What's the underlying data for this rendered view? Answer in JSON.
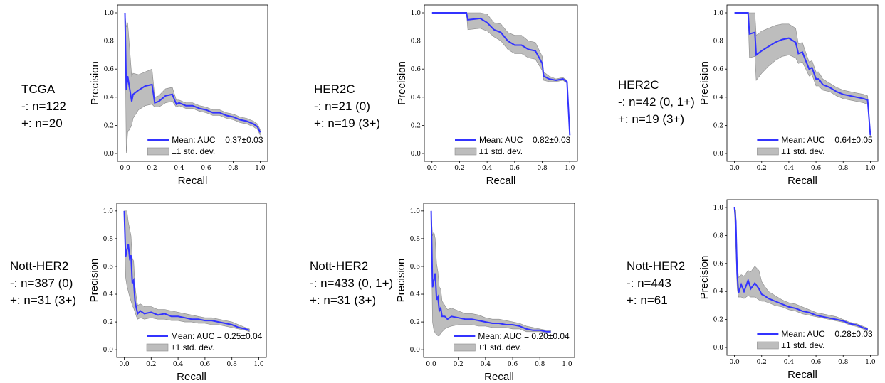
{
  "colors": {
    "mean_line": "#3333ff",
    "band": "#bdbdbd",
    "band_edge": "#8c8c8c"
  },
  "chart_data": [
    {
      "type": "line",
      "group_label": [
        "TCGA",
        "-: n=122",
        "+: n=20"
      ],
      "xlabel": "Recall",
      "ylabel": "Precision",
      "xlim": [
        0,
        1
      ],
      "ylim": [
        0,
        1
      ],
      "xticks": [
        "0.0",
        "0.2",
        "0.4",
        "0.6",
        "0.8",
        "1.0"
      ],
      "yticks": [
        "0.0",
        "0.2",
        "0.4",
        "0.6",
        "0.8",
        "1.0"
      ],
      "legend_position": "lower-right",
      "legend": [
        "Mean: AUC = 0.37±0.03",
        "±1 std. dev."
      ],
      "series": [
        {
          "x": [
            0.0,
            0.01,
            0.02,
            0.05,
            0.06,
            0.1,
            0.15,
            0.2,
            0.22,
            0.25,
            0.3,
            0.35,
            0.38,
            0.4,
            0.45,
            0.5,
            0.55,
            0.6,
            0.65,
            0.7,
            0.75,
            0.8,
            0.85,
            0.9,
            0.95,
            0.98,
            1.0
          ],
          "y": [
            1.0,
            0.45,
            0.55,
            0.37,
            0.42,
            0.45,
            0.48,
            0.49,
            0.36,
            0.37,
            0.41,
            0.42,
            0.35,
            0.36,
            0.34,
            0.34,
            0.32,
            0.31,
            0.29,
            0.29,
            0.27,
            0.26,
            0.24,
            0.23,
            0.21,
            0.19,
            0.15
          ],
          "lower": [
            0.95,
            0.0,
            0.15,
            0.2,
            0.25,
            0.31,
            0.34,
            0.35,
            0.33,
            0.33,
            0.36,
            0.37,
            0.33,
            0.34,
            0.32,
            0.32,
            0.3,
            0.29,
            0.27,
            0.27,
            0.25,
            0.24,
            0.22,
            0.21,
            0.19,
            0.17,
            0.13
          ],
          "upper": [
            1.0,
            0.9,
            0.93,
            0.55,
            0.57,
            0.56,
            0.58,
            0.6,
            0.4,
            0.41,
            0.46,
            0.47,
            0.38,
            0.38,
            0.36,
            0.36,
            0.34,
            0.33,
            0.31,
            0.31,
            0.29,
            0.28,
            0.26,
            0.25,
            0.23,
            0.21,
            0.17
          ]
        }
      ]
    },
    {
      "type": "line",
      "group_label": [
        "HER2C",
        "-: n=21 (0)",
        "+: n=19 (3+)"
      ],
      "xlabel": "Recall",
      "ylabel": "Precision",
      "xlim": [
        0,
        1
      ],
      "ylim": [
        0,
        1
      ],
      "xticks": [
        "0.0",
        "0.2",
        "0.4",
        "0.6",
        "0.8",
        "1.0"
      ],
      "yticks": [
        "0.0",
        "0.2",
        "0.4",
        "0.6",
        "0.8",
        "1.0"
      ],
      "legend_position": "lower-right",
      "legend": [
        "Mean: AUC = 0.82±0.03",
        "±1 std. dev."
      ],
      "series": [
        {
          "x": [
            0.0,
            0.25,
            0.26,
            0.35,
            0.4,
            0.45,
            0.5,
            0.55,
            0.6,
            0.65,
            0.7,
            0.75,
            0.8,
            0.81,
            0.85,
            0.9,
            0.95,
            0.98,
            1.0
          ],
          "y": [
            1.0,
            1.0,
            0.95,
            0.96,
            0.93,
            0.88,
            0.86,
            0.8,
            0.77,
            0.77,
            0.74,
            0.73,
            0.64,
            0.55,
            0.53,
            0.52,
            0.53,
            0.51,
            0.13
          ],
          "lower": [
            1.0,
            1.0,
            0.88,
            0.89,
            0.87,
            0.83,
            0.8,
            0.74,
            0.71,
            0.71,
            0.68,
            0.67,
            0.59,
            0.52,
            0.51,
            0.51,
            0.52,
            0.5,
            0.12
          ],
          "upper": [
            1.0,
            1.0,
            1.0,
            1.0,
            0.99,
            0.93,
            0.92,
            0.86,
            0.84,
            0.84,
            0.8,
            0.79,
            0.69,
            0.58,
            0.55,
            0.53,
            0.54,
            0.52,
            0.14
          ]
        }
      ]
    },
    {
      "type": "line",
      "group_label": [
        "HER2C",
        "-: n=42 (0, 1+)",
        "+: n=19 (3+)"
      ],
      "xlabel": "Recall",
      "ylabel": "Precision",
      "xlim": [
        0,
        1
      ],
      "ylim": [
        0,
        1
      ],
      "xticks": [
        "0.0",
        "0.2",
        "0.4",
        "0.6",
        "0.8",
        "1.0"
      ],
      "yticks": [
        "0.0",
        "0.2",
        "0.4",
        "0.6",
        "0.8",
        "1.0"
      ],
      "legend_position": "lower-right",
      "legend": [
        "Mean: AUC = 0.64±0.05",
        "±1 std. dev."
      ],
      "series": [
        {
          "x": [
            0.0,
            0.1,
            0.11,
            0.15,
            0.16,
            0.2,
            0.25,
            0.3,
            0.35,
            0.4,
            0.45,
            0.47,
            0.5,
            0.52,
            0.55,
            0.57,
            0.6,
            0.62,
            0.65,
            0.7,
            0.75,
            0.8,
            0.85,
            0.9,
            0.95,
            0.98,
            1.0
          ],
          "y": [
            1.0,
            1.0,
            0.85,
            0.86,
            0.7,
            0.73,
            0.76,
            0.79,
            0.81,
            0.82,
            0.79,
            0.71,
            0.72,
            0.67,
            0.6,
            0.61,
            0.53,
            0.53,
            0.49,
            0.47,
            0.44,
            0.42,
            0.41,
            0.4,
            0.39,
            0.38,
            0.13
          ],
          "lower": [
            1.0,
            1.0,
            0.68,
            0.69,
            0.52,
            0.57,
            0.62,
            0.66,
            0.69,
            0.7,
            0.68,
            0.64,
            0.65,
            0.61,
            0.55,
            0.56,
            0.48,
            0.48,
            0.45,
            0.44,
            0.41,
            0.39,
            0.38,
            0.37,
            0.36,
            0.35,
            0.12
          ],
          "upper": [
            1.0,
            1.0,
            1.0,
            1.0,
            0.84,
            0.87,
            0.89,
            0.91,
            0.92,
            0.92,
            0.89,
            0.78,
            0.79,
            0.73,
            0.65,
            0.66,
            0.58,
            0.58,
            0.53,
            0.5,
            0.47,
            0.45,
            0.44,
            0.43,
            0.42,
            0.41,
            0.14
          ]
        }
      ]
    },
    {
      "type": "line",
      "group_label": [
        "Nott-HER2",
        "-: n=387 (0)",
        "+: n=31 (3+)"
      ],
      "xlabel": "Recall",
      "ylabel": "Precision",
      "xlim": [
        0,
        1
      ],
      "ylim": [
        0,
        1
      ],
      "xticks": [
        "0.0",
        "0.2",
        "0.4",
        "0.6",
        "0.8",
        "1.0"
      ],
      "yticks": [
        "0.0",
        "0.2",
        "0.4",
        "0.6",
        "0.8",
        "1.0"
      ],
      "legend_position": "lower-right",
      "legend": [
        "Mean: AUC = 0.25±0.04",
        "±1 std. dev."
      ],
      "series": [
        {
          "x": [
            0.0,
            0.01,
            0.02,
            0.03,
            0.04,
            0.05,
            0.06,
            0.07,
            0.08,
            0.09,
            0.1,
            0.12,
            0.15,
            0.2,
            0.25,
            0.3,
            0.35,
            0.4,
            0.45,
            0.5,
            0.55,
            0.6,
            0.65,
            0.7,
            0.75,
            0.8,
            0.85,
            0.9,
            0.93
          ],
          "y": [
            1.0,
            0.67,
            0.72,
            0.76,
            0.66,
            0.68,
            0.48,
            0.5,
            0.35,
            0.3,
            0.26,
            0.28,
            0.26,
            0.27,
            0.25,
            0.26,
            0.24,
            0.24,
            0.23,
            0.22,
            0.22,
            0.21,
            0.21,
            0.2,
            0.19,
            0.18,
            0.16,
            0.15,
            0.14
          ],
          "lower": [
            0.98,
            0.52,
            0.46,
            0.42,
            0.38,
            0.35,
            0.32,
            0.3,
            0.27,
            0.24,
            0.22,
            0.23,
            0.22,
            0.23,
            0.22,
            0.22,
            0.21,
            0.21,
            0.2,
            0.2,
            0.19,
            0.19,
            0.18,
            0.18,
            0.17,
            0.16,
            0.15,
            0.14,
            0.13
          ],
          "upper": [
            1.0,
            1.0,
            1.0,
            0.92,
            0.87,
            0.82,
            0.66,
            0.64,
            0.46,
            0.38,
            0.32,
            0.33,
            0.31,
            0.31,
            0.29,
            0.29,
            0.28,
            0.27,
            0.26,
            0.25,
            0.24,
            0.23,
            0.23,
            0.22,
            0.21,
            0.2,
            0.18,
            0.16,
            0.15
          ]
        }
      ]
    },
    {
      "type": "line",
      "group_label": [
        "Nott-HER2",
        "-: n=433 (0, 1+)",
        "+: n=31 (3+)"
      ],
      "xlabel": "Recall",
      "ylabel": "Precision",
      "xlim": [
        0,
        1
      ],
      "ylim": [
        0,
        1
      ],
      "xticks": [
        "0.0",
        "0.2",
        "0.4",
        "0.6",
        "0.8",
        "1.0"
      ],
      "yticks": [
        "0.0",
        "0.2",
        "0.4",
        "0.6",
        "0.8",
        "1.0"
      ],
      "legend_position": "lower-right",
      "legend": [
        "Mean: AUC = 0.20±0.04",
        "±1 std. dev."
      ],
      "series": [
        {
          "x": [
            0.0,
            0.01,
            0.02,
            0.03,
            0.04,
            0.05,
            0.06,
            0.07,
            0.08,
            0.1,
            0.12,
            0.15,
            0.2,
            0.25,
            0.3,
            0.35,
            0.4,
            0.45,
            0.5,
            0.55,
            0.6,
            0.65,
            0.7,
            0.75,
            0.8,
            0.85,
            0.88
          ],
          "y": [
            1.0,
            0.45,
            0.5,
            0.55,
            0.36,
            0.38,
            0.28,
            0.3,
            0.24,
            0.24,
            0.22,
            0.24,
            0.23,
            0.22,
            0.22,
            0.21,
            0.2,
            0.19,
            0.19,
            0.18,
            0.18,
            0.17,
            0.15,
            0.14,
            0.14,
            0.13,
            0.13
          ],
          "lower": [
            0.94,
            0.2,
            0.14,
            0.12,
            0.11,
            0.1,
            0.1,
            0.12,
            0.13,
            0.15,
            0.16,
            0.17,
            0.18,
            0.18,
            0.18,
            0.17,
            0.17,
            0.16,
            0.16,
            0.16,
            0.15,
            0.15,
            0.13,
            0.13,
            0.13,
            0.12,
            0.12
          ],
          "upper": [
            1.0,
            0.82,
            0.85,
            0.8,
            0.62,
            0.56,
            0.45,
            0.44,
            0.35,
            0.32,
            0.29,
            0.3,
            0.28,
            0.26,
            0.26,
            0.25,
            0.23,
            0.22,
            0.22,
            0.21,
            0.2,
            0.19,
            0.17,
            0.16,
            0.15,
            0.14,
            0.14
          ]
        }
      ]
    },
    {
      "type": "line",
      "group_label": [
        "Nott-HER2",
        "-: n=443",
        "+: n=61"
      ],
      "xlabel": "Recall",
      "ylabel": "Precision",
      "xlim": [
        0,
        1
      ],
      "ylim": [
        0,
        1
      ],
      "xticks": [
        "0.0",
        "0.2",
        "0.4",
        "0.6",
        "0.8",
        "1.0"
      ],
      "yticks": [
        "0.0",
        "0.2",
        "0.4",
        "0.6",
        "0.8",
        "1.0"
      ],
      "legend_position": "lower-right",
      "legend": [
        "Mean: AUC = 0.28±0.03",
        "±1 std. dev."
      ],
      "series": [
        {
          "x": [
            0.0,
            0.01,
            0.02,
            0.03,
            0.05,
            0.07,
            0.1,
            0.12,
            0.15,
            0.18,
            0.2,
            0.22,
            0.25,
            0.3,
            0.35,
            0.4,
            0.45,
            0.5,
            0.55,
            0.6,
            0.65,
            0.7,
            0.75,
            0.8,
            0.85,
            0.9,
            0.95,
            0.98
          ],
          "y": [
            1.0,
            0.9,
            0.52,
            0.39,
            0.45,
            0.4,
            0.48,
            0.42,
            0.46,
            0.42,
            0.38,
            0.37,
            0.35,
            0.33,
            0.31,
            0.29,
            0.28,
            0.26,
            0.25,
            0.23,
            0.22,
            0.21,
            0.2,
            0.19,
            0.17,
            0.16,
            0.14,
            0.13
          ],
          "lower": [
            0.97,
            0.7,
            0.42,
            0.36,
            0.36,
            0.35,
            0.37,
            0.36,
            0.36,
            0.34,
            0.33,
            0.33,
            0.32,
            0.3,
            0.29,
            0.27,
            0.26,
            0.24,
            0.23,
            0.22,
            0.21,
            0.2,
            0.19,
            0.18,
            0.16,
            0.15,
            0.13,
            0.12
          ],
          "upper": [
            1.0,
            0.98,
            0.62,
            0.5,
            0.52,
            0.51,
            0.55,
            0.54,
            0.58,
            0.55,
            0.47,
            0.44,
            0.4,
            0.37,
            0.34,
            0.32,
            0.31,
            0.29,
            0.27,
            0.25,
            0.24,
            0.23,
            0.22,
            0.2,
            0.18,
            0.17,
            0.15,
            0.14
          ]
        }
      ]
    }
  ]
}
